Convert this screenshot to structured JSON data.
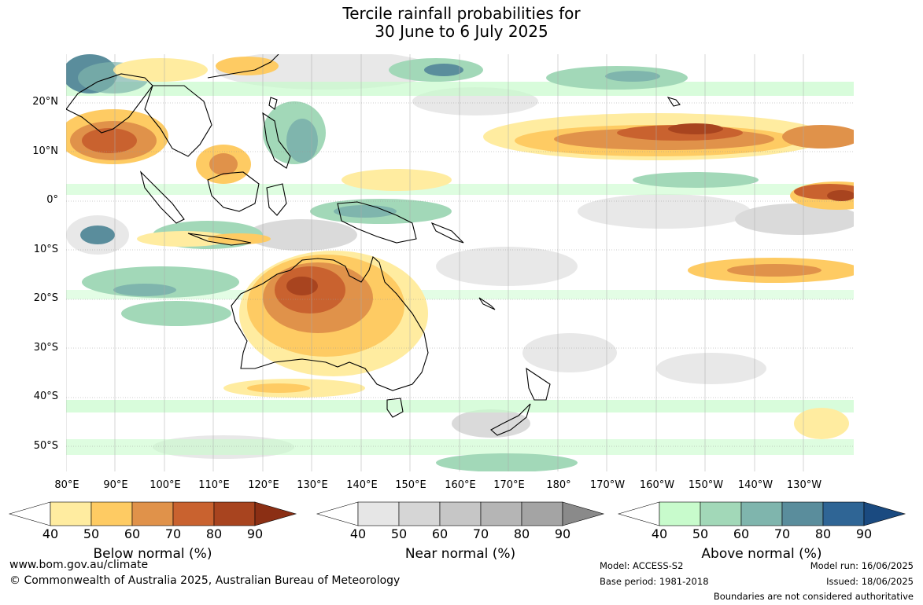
{
  "title_line1": "Tercile rainfall probabilities for",
  "title_line2": "30 June to 6 July 2025",
  "lat_labels": [
    "20°N",
    "10°N",
    "0°",
    "10°S",
    "20°S",
    "30°S",
    "40°S",
    "50°S"
  ],
  "lon_labels": [
    "80°E",
    "90°E",
    "100°E",
    "110°E",
    "120°E",
    "130°E",
    "140°E",
    "150°E",
    "160°E",
    "170°E",
    "180°",
    "170°W",
    "160°W",
    "150°W",
    "140°W",
    "130°W"
  ],
  "colorbars": [
    {
      "label": "Below normal (%)",
      "ticks": [
        "40",
        "50",
        "60",
        "70",
        "80",
        "90"
      ],
      "colors": [
        "#ffffff",
        "#ffeca0",
        "#fecb63",
        "#e0924a",
        "#c9622f",
        "#a8441f",
        "#8b2f14"
      ]
    },
    {
      "label": "Near normal (%)",
      "ticks": [
        "40",
        "50",
        "60",
        "70",
        "80",
        "90"
      ],
      "colors": [
        "#ffffff",
        "#e6e6e6",
        "#d6d6d6",
        "#c6c6c6",
        "#b5b5b5",
        "#a4a4a4",
        "#8a8a8a"
      ]
    },
    {
      "label": "Above normal (%)",
      "ticks": [
        "40",
        "50",
        "60",
        "70",
        "80",
        "90"
      ],
      "colors": [
        "#ffffff",
        "#c8fbcc",
        "#a2d8b8",
        "#7fb5ad",
        "#5a8d9c",
        "#2f6595",
        "#1a4a80"
      ]
    }
  ],
  "footer": {
    "website": "www.bom.gov.au/climate",
    "copyright": "© Commonwealth of Australia 2025, Australian Bureau of Meteorology",
    "model": "Model: ACCESS-S2",
    "base_period": "Base period: 1981-2018",
    "model_run": "Model run: 16/06/2025",
    "issued": "Issued: 18/06/2025",
    "disclaimer": "Boundaries are not considered authoritative"
  }
}
